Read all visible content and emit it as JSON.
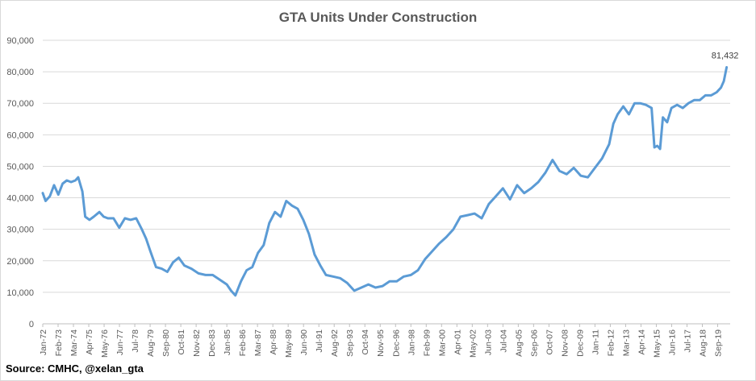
{
  "chart_data": {
    "type": "line",
    "title": "GTA Units Under Construction",
    "xlabel": "",
    "ylabel": "",
    "ylim": [
      0,
      90000
    ],
    "y_ticks": [
      "0",
      "10,000",
      "20,000",
      "30,000",
      "40,000",
      "50,000",
      "60,000",
      "70,000",
      "80,000",
      "90,000"
    ],
    "x_tick_labels": [
      "Jan-72",
      "Feb-73",
      "Mar-74",
      "Apr-75",
      "May-76",
      "Jun-77",
      "Jul-78",
      "Aug-79",
      "Sep-80",
      "Oct-81",
      "Nov-82",
      "Dec-83",
      "Jan-85",
      "Feb-86",
      "Mar-87",
      "Apr-88",
      "May-89",
      "Jun-90",
      "Jul-91",
      "Aug-92",
      "Sep-93",
      "Oct-94",
      "Nov-95",
      "Dec-96",
      "Jan-98",
      "Feb-99",
      "Mar-00",
      "Apr-01",
      "May-02",
      "Jun-03",
      "Jul-04",
      "Aug-05",
      "Sep-06",
      "Oct-07",
      "Nov-08",
      "Dec-09",
      "Jan-11",
      "Feb-12",
      "Mar-13",
      "Apr-14",
      "May-15",
      "Jun-16",
      "Jul-17",
      "Aug-18",
      "Sep-19"
    ],
    "grid": true,
    "legend": "none",
    "line_color": "#5b9bd5",
    "series": [
      {
        "x": [
          1972.0,
          1972.2,
          1972.5,
          1972.8,
          1973.1,
          1973.4,
          1973.7,
          1974.0,
          1974.3,
          1974.5,
          1974.8,
          1975.0,
          1975.3,
          1975.6,
          1976.0,
          1976.3,
          1976.6,
          1977.0,
          1977.4,
          1977.8,
          1978.2,
          1978.6,
          1979.0,
          1979.3,
          1979.6,
          1980.0,
          1980.4,
          1980.8,
          1981.2,
          1981.6,
          1982.0,
          1982.5,
          1983.0,
          1983.5,
          1984.0,
          1984.5,
          1985.0,
          1985.3,
          1985.6,
          1986.0,
          1986.4,
          1986.8,
          1987.2,
          1987.6,
          1988.0,
          1988.4,
          1988.8,
          1989.2,
          1989.6,
          1990.0,
          1990.4,
          1990.8,
          1991.2,
          1991.6,
          1992.0,
          1992.5,
          1993.0,
          1993.5,
          1994.0,
          1994.5,
          1995.0,
          1995.5,
          1996.0,
          1996.5,
          1997.0,
          1997.5,
          1998.0,
          1998.5,
          1999.0,
          1999.5,
          2000.0,
          2000.5,
          2001.0,
          2001.5,
          2002.0,
          2002.5,
          2003.0,
          2003.5,
          2004.0,
          2004.5,
          2005.0,
          2005.5,
          2006.0,
          2006.5,
          2007.0,
          2007.5,
          2008.0,
          2008.5,
          2009.0,
          2009.5,
          2010.0,
          2010.5,
          2011.0,
          2011.5,
          2012.0,
          2012.3,
          2012.6,
          2013.0,
          2013.4,
          2013.8,
          2014.2,
          2014.6,
          2015.0,
          2015.2,
          2015.4,
          2015.6,
          2015.8,
          2016.1,
          2016.4,
          2016.8,
          2017.2,
          2017.6,
          2018.0,
          2018.4,
          2018.8,
          2019.2,
          2019.6,
          2019.9,
          2020.1,
          2020.3
        ],
        "y": [
          41500,
          39000,
          40500,
          44000,
          41000,
          44500,
          45500,
          45000,
          45500,
          46500,
          42000,
          34000,
          33000,
          34000,
          35500,
          34000,
          33500,
          33500,
          30500,
          33500,
          33000,
          33500,
          30000,
          27000,
          23000,
          18000,
          17500,
          16500,
          19500,
          21000,
          18500,
          17500,
          16000,
          15500,
          15500,
          14000,
          12500,
          10500,
          9000,
          13500,
          17000,
          18000,
          22500,
          25000,
          32000,
          35500,
          34000,
          39000,
          37500,
          36500,
          33000,
          28500,
          22000,
          18500,
          15500,
          15000,
          14500,
          13000,
          10500,
          11500,
          12500,
          11500,
          12000,
          13500,
          13500,
          15000,
          15500,
          17000,
          20500,
          23000,
          25500,
          27500,
          30000,
          34000,
          34500,
          35000,
          33500,
          38000,
          40500,
          43000,
          39500,
          44000,
          41500,
          43000,
          45000,
          48000,
          52000,
          48500,
          47500,
          49500,
          47000,
          46500,
          49500,
          52500,
          57000,
          63500,
          66500,
          69000,
          66500,
          70000,
          70000,
          69500,
          68500,
          56000,
          56500,
          55500,
          65500,
          64000,
          68500,
          69500,
          68500,
          70000,
          71000,
          71000,
          72500,
          72500,
          73500,
          75000,
          77000,
          81432
        ]
      }
    ],
    "annotations": [
      {
        "text": "81,432",
        "x": 2020.3,
        "y": 81432
      }
    ]
  },
  "source_note": "Source: CMHC, @xelan_gta"
}
